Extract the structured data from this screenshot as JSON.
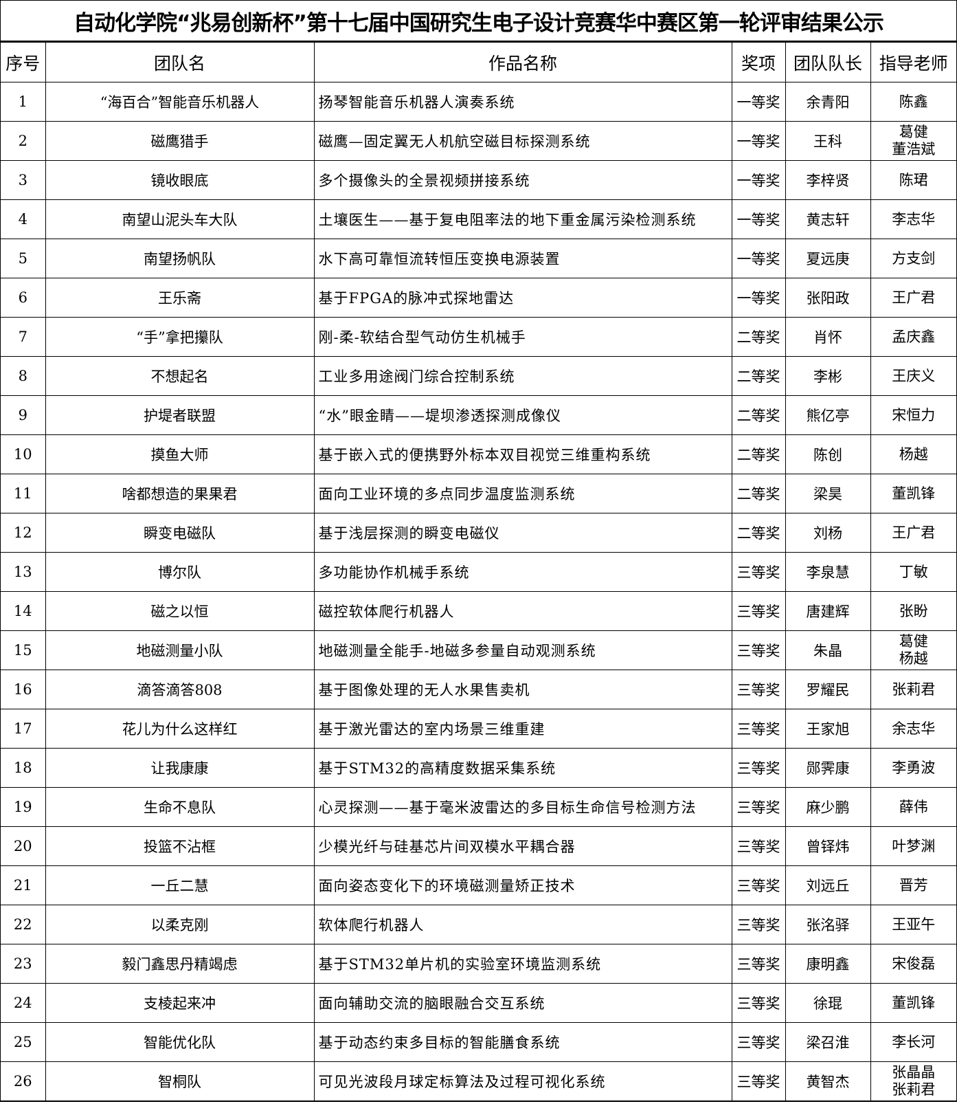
{
  "title": "自动化学院“兆易创新杯”第十七届中国研究生电子设计竞赛华中赛区第一轮评审结果公示",
  "columns": [
    "序号",
    "团队名",
    "作品名称",
    "奖项",
    "团队队长",
    "指导老师"
  ],
  "rows": [
    {
      "no": "1",
      "team": "“海百合”智能音乐机器人",
      "work": "扬琴智能音乐机器人演奏系统",
      "award": "一等奖",
      "leader": "余青阳",
      "advisor": "陈鑫"
    },
    {
      "no": "2",
      "team": "磁鹰猎手",
      "work": "磁鹰—固定翼无人机航空磁目标探测系统",
      "award": "一等奖",
      "leader": "王科",
      "advisor": "葛健\n董浩斌"
    },
    {
      "no": "3",
      "team": "镜收眼底",
      "work": "多个摄像头的全景视频拼接系统",
      "award": "一等奖",
      "leader": "李梓贤",
      "advisor": "陈珺"
    },
    {
      "no": "4",
      "team": "南望山泥头车大队",
      "work": "土壤医生——基于复电阻率法的地下重金属污染检测系统",
      "award": "一等奖",
      "leader": "黄志轩",
      "advisor": "李志华"
    },
    {
      "no": "5",
      "team": "南望扬帆队",
      "work": "水下高可靠恒流转恒压变换电源装置",
      "award": "一等奖",
      "leader": "夏远庚",
      "advisor": "方支剑"
    },
    {
      "no": "6",
      "team": "王乐斋",
      "work": "基于FPGA的脉冲式探地雷达",
      "award": "一等奖",
      "leader": "张阳政",
      "advisor": "王广君"
    },
    {
      "no": "7",
      "team": "“手”拿把攥队",
      "work": "刚-柔-软结合型气动仿生机械手",
      "award": "二等奖",
      "leader": "肖怀",
      "advisor": "孟庆鑫"
    },
    {
      "no": "8",
      "team": "不想起名",
      "work": "工业多用途阀门综合控制系统",
      "award": "二等奖",
      "leader": "李彬",
      "advisor": "王庆义"
    },
    {
      "no": "9",
      "team": "护堤者联盟",
      "work": "“水”眼金睛——堤坝渗透探测成像仪",
      "award": "二等奖",
      "leader": "熊亿亭",
      "advisor": "宋恒力"
    },
    {
      "no": "10",
      "team": "摸鱼大师",
      "work": "基于嵌入式的便携野外标本双目视觉三维重构系统",
      "award": "二等奖",
      "leader": "陈创",
      "advisor": "杨越"
    },
    {
      "no": "11",
      "team": "啥都想造的果果君",
      "work": "面向工业环境的多点同步温度监测系统",
      "award": "二等奖",
      "leader": "梁昊",
      "advisor": "董凯锋"
    },
    {
      "no": "12",
      "team": "瞬变电磁队",
      "work": "基于浅层探测的瞬变电磁仪",
      "award": "二等奖",
      "leader": "刘杨",
      "advisor": "王广君"
    },
    {
      "no": "13",
      "team": "博尔队",
      "work": "多功能协作机械手系统",
      "award": "三等奖",
      "leader": "李泉慧",
      "advisor": "丁敏"
    },
    {
      "no": "14",
      "team": "磁之以恒",
      "work": "磁控软体爬行机器人",
      "award": "三等奖",
      "leader": "唐建辉",
      "advisor": "张盼"
    },
    {
      "no": "15",
      "team": "地磁测量小队",
      "work": "地磁测量全能手-地磁多参量自动观测系统",
      "award": "三等奖",
      "leader": "朱晶",
      "advisor": "葛健\n杨越"
    },
    {
      "no": "16",
      "team": "滴答滴答808",
      "work": "基于图像处理的无人水果售卖机",
      "award": "三等奖",
      "leader": "罗耀民",
      "advisor": "张莉君"
    },
    {
      "no": "17",
      "team": "花儿为什么这样红",
      "work": "基于激光雷达的室内场景三维重建",
      "award": "三等奖",
      "leader": "王家旭",
      "advisor": "余志华"
    },
    {
      "no": "18",
      "team": "让我康康",
      "work": "基于STM32的高精度数据采集系统",
      "award": "三等奖",
      "leader": "郧霁康",
      "advisor": "李勇波"
    },
    {
      "no": "19",
      "team": "生命不息队",
      "work": "心灵探测——基于毫米波雷达的多目标生命信号检测方法",
      "award": "三等奖",
      "leader": "麻少鹏",
      "advisor": "薛伟"
    },
    {
      "no": "20",
      "team": "投篮不沾框",
      "work": "少模光纤与硅基芯片间双模水平耦合器",
      "award": "三等奖",
      "leader": "曾铎炜",
      "advisor": "叶梦渊"
    },
    {
      "no": "21",
      "team": "一丘二慧",
      "work": "面向姿态变化下的环境磁测量矫正技术",
      "award": "三等奖",
      "leader": "刘远丘",
      "advisor": "晋芳"
    },
    {
      "no": "22",
      "team": "以柔克刚",
      "work": "软体爬行机器人",
      "award": "三等奖",
      "leader": "张洺驿",
      "advisor": "王亚午"
    },
    {
      "no": "23",
      "team": "毅门鑫思丹精竭虑",
      "work": "基于STM32单片机的实验室环境监测系统",
      "award": "三等奖",
      "leader": "康明鑫",
      "advisor": "宋俊磊"
    },
    {
      "no": "24",
      "team": "支棱起来冲",
      "work": "面向辅助交流的脑眼融合交互系统",
      "award": "三等奖",
      "leader": "徐琨",
      "advisor": "董凯锋"
    },
    {
      "no": "25",
      "team": "智能优化队",
      "work": "基于动态约束多目标的智能膳食系统",
      "award": "三等奖",
      "leader": "梁召淮",
      "advisor": "李长河"
    },
    {
      "no": "26",
      "team": "智桐队",
      "work": "可见光波段月球定标算法及过程可视化系统",
      "award": "三等奖",
      "leader": "黄智杰",
      "advisor": "张晶晶\n张莉君"
    }
  ]
}
